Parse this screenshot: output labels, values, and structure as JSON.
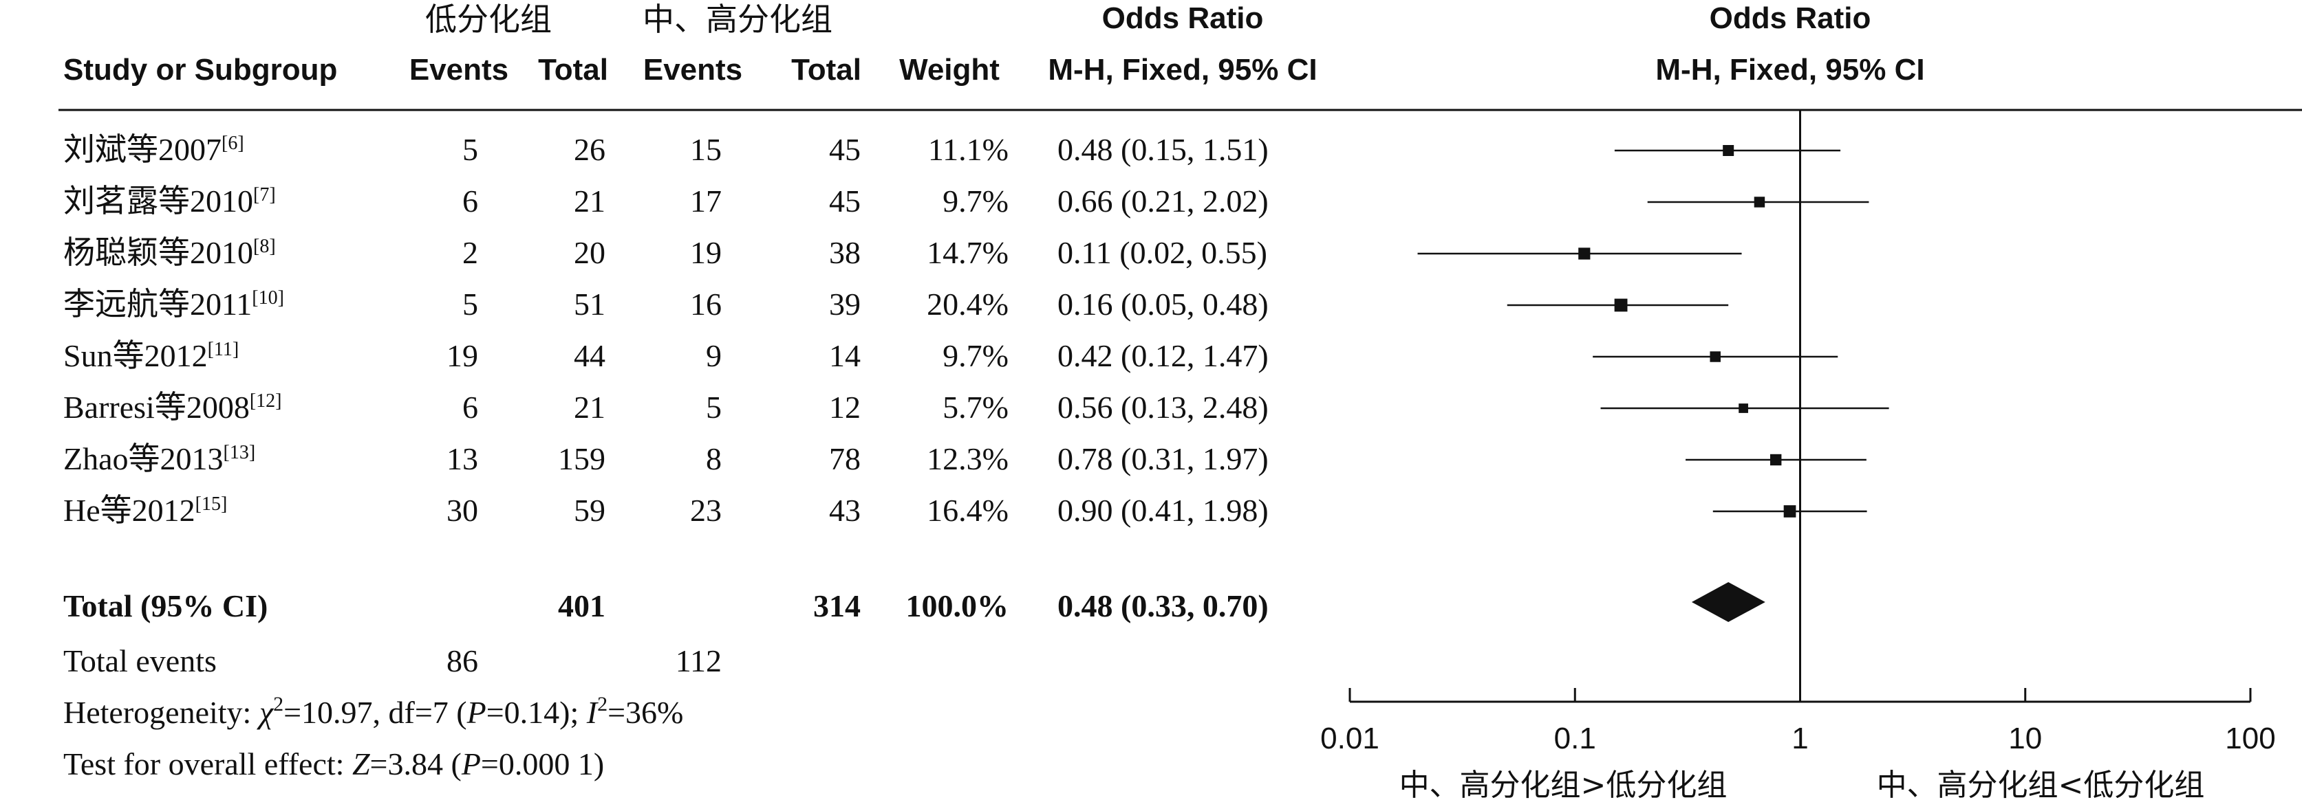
{
  "header": {
    "group1": "低分化组",
    "group2": "中、高分化组",
    "col_study": "Study or Subgroup",
    "col_events1": "Events",
    "col_total1": "Total",
    "col_events2": "Events",
    "col_total2": "Total",
    "col_weight": "Weight",
    "or_title": "Odds Ratio",
    "or_method": "M-H, Fixed, 95% CI",
    "plot_title": "Odds Ratio",
    "plot_method": "M-H, Fixed, 95% CI"
  },
  "studies": [
    {
      "name": "刘斌等2007",
      "ref": "[6]",
      "e1": "5",
      "t1": "26",
      "e2": "15",
      "t2": "45",
      "weight": "11.1%",
      "ci_text": "0.48 (0.15, 1.51)"
    },
    {
      "name": "刘茗露等2010",
      "ref": "[7]",
      "e1": "6",
      "t1": "21",
      "e2": "17",
      "t2": "45",
      "weight": "9.7%",
      "ci_text": "0.66 (0.21, 2.02)"
    },
    {
      "name": "杨聪颖等2010",
      "ref": "[8]",
      "e1": "2",
      "t1": "20",
      "e2": "19",
      "t2": "38",
      "weight": "14.7%",
      "ci_text": "0.11 (0.02, 0.55)"
    },
    {
      "name": "李远航等2011",
      "ref": "[10]",
      "e1": "5",
      "t1": "51",
      "e2": "16",
      "t2": "39",
      "weight": "20.4%",
      "ci_text": "0.16 (0.05, 0.48)"
    },
    {
      "name": "Sun等2012",
      "ref": "[11]",
      "e1": "19",
      "t1": "44",
      "e2": "9",
      "t2": "14",
      "weight": "9.7%",
      "ci_text": "0.42 (0.12, 1.47)"
    },
    {
      "name": "Barresi等2008",
      "ref": "[12]",
      "e1": "6",
      "t1": "21",
      "e2": "5",
      "t2": "12",
      "weight": "5.7%",
      "ci_text": "0.56 (0.13, 2.48)"
    },
    {
      "name": "Zhao等2013",
      "ref": "[13]",
      "e1": "13",
      "t1": "159",
      "e2": "8",
      "t2": "78",
      "weight": "12.3%",
      "ci_text": "0.78 (0.31, 1.97)"
    },
    {
      "name": "He等2012",
      "ref": "[15]",
      "e1": "30",
      "t1": "59",
      "e2": "23",
      "t2": "43",
      "weight": "16.4%",
      "ci_text": "0.90 (0.41, 1.98)"
    }
  ],
  "total": {
    "label": "Total (95% CI)",
    "t1": "401",
    "t2": "314",
    "weight": "100.0%",
    "ci_text": "0.48 (0.33, 0.70)"
  },
  "total_events": {
    "label": "Total events",
    "e1": "86",
    "e2": "112"
  },
  "heterogeneity": {
    "prefix": "Heterogeneity: ",
    "chi_symbol": "χ",
    "chi_rest": "=10.97, df=7 (",
    "p1_symbol": "P",
    "p1_rest": "=0.14); ",
    "i_symbol": "I",
    "i_rest": "=36%",
    "sup": "2"
  },
  "overall_effect": {
    "prefix": "Test for overall effect: ",
    "z_symbol": "Z",
    "z_rest": "=3.84 (",
    "p_symbol": "P",
    "p_rest": "=0.000 1)"
  },
  "axis": {
    "ticks": [
      "0.01",
      "0.1",
      "1",
      "10",
      "100"
    ],
    "label_left": "中、高分化组>低分化组",
    "label_right": "中、高分化组<低分化组"
  },
  "chart_data": {
    "type": "forest",
    "scale": "log",
    "xlim": [
      0.01,
      100
    ],
    "reference_line": 1,
    "studies": [
      {
        "name": "刘斌等2007",
        "or": 0.48,
        "lower": 0.15,
        "upper": 1.51,
        "weight": 11.1
      },
      {
        "name": "刘茗露等2010",
        "or": 0.66,
        "lower": 0.21,
        "upper": 2.02,
        "weight": 9.7
      },
      {
        "name": "杨聪颖等2010",
        "or": 0.11,
        "lower": 0.02,
        "upper": 0.55,
        "weight": 14.7
      },
      {
        "name": "李远航等2011",
        "or": 0.16,
        "lower": 0.05,
        "upper": 0.48,
        "weight": 20.4
      },
      {
        "name": "Sun等2012",
        "or": 0.42,
        "lower": 0.12,
        "upper": 1.47,
        "weight": 9.7
      },
      {
        "name": "Barresi等2008",
        "or": 0.56,
        "lower": 0.13,
        "upper": 2.48,
        "weight": 5.7
      },
      {
        "name": "Zhao等2013",
        "or": 0.78,
        "lower": 0.31,
        "upper": 1.97,
        "weight": 12.3
      },
      {
        "name": "He等2012",
        "or": 0.9,
        "lower": 0.41,
        "upper": 1.98,
        "weight": 16.4
      }
    ],
    "pooled": {
      "or": 0.48,
      "lower": 0.33,
      "upper": 0.7
    }
  }
}
